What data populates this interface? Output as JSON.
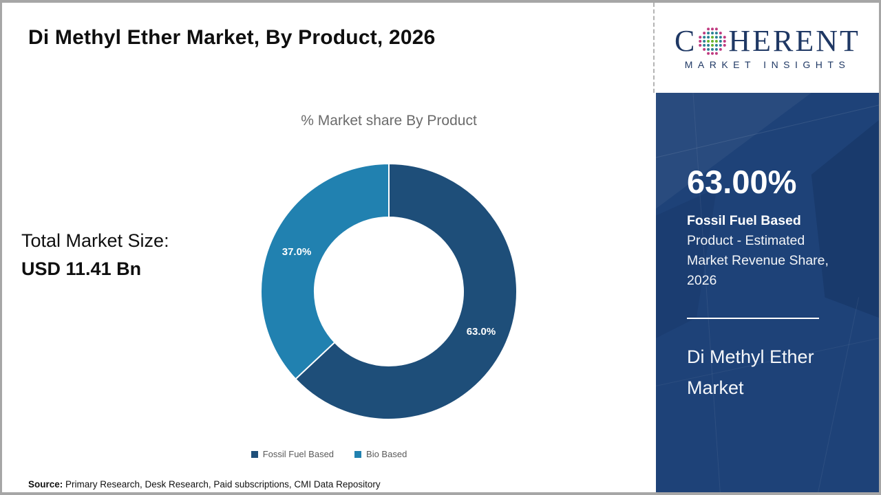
{
  "page": {
    "title": "Di Methyl Ether Market, By Product, 2026",
    "source_label": "Source:",
    "source_text": " Primary Research, Desk Research, Paid subscriptions, CMI Data Repository",
    "border_color": "#a6a6a6"
  },
  "logo": {
    "word_start": "C",
    "word_end": "HERENT",
    "subtitle": "MARKET INSIGHTS",
    "navy": "#1f3864",
    "globe_colors": {
      "inner": "#6ab32f",
      "mid": "#2d8095",
      "outer": "#c03b80"
    }
  },
  "left_panel": {
    "total_label": "Total Market Size:",
    "total_value": "USD 11.41 Bn"
  },
  "chart_data": {
    "type": "pie",
    "donut": true,
    "title": "% Market share By Product",
    "categories": [
      "Fossil Fuel Based",
      "Bio Based"
    ],
    "values": [
      63.0,
      37.0
    ],
    "labels": [
      "63.0%",
      "37.0%"
    ],
    "colors": [
      "#1e4e79",
      "#2181b0"
    ],
    "start_angle_deg": 0,
    "legend_position": "bottom",
    "outer_radius": 186,
    "inner_radius": 108,
    "label_radius": 146
  },
  "sidebar": {
    "background": "#1e4278",
    "stat_value": "63.00%",
    "stat_desc_bold": "Fossil Fuel Based",
    "stat_desc_rest": " Product - Estimated Market Revenue Share, 2026",
    "market_name": "Di Methyl Ether Market"
  }
}
